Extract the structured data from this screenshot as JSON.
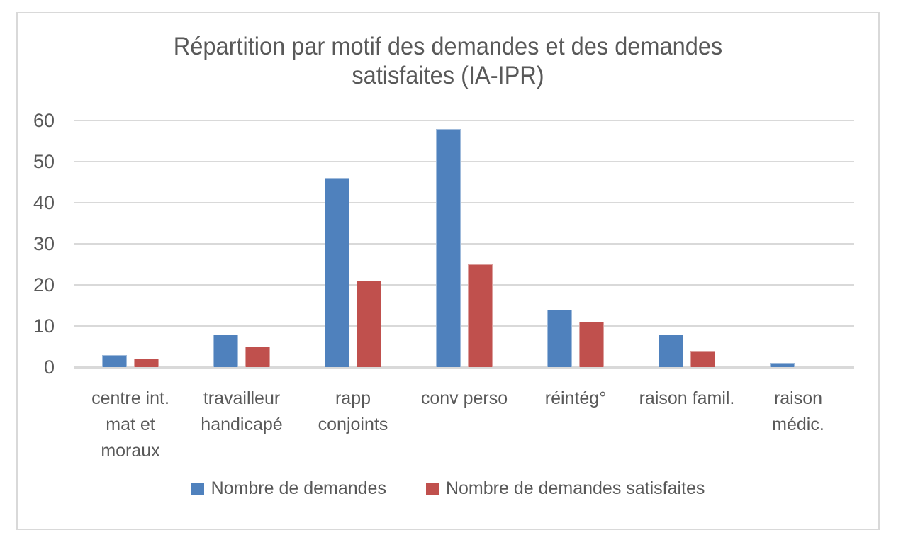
{
  "chart_data": {
    "type": "bar",
    "title": "Répartition par motif des demandes et des demandes satisfaites (IA-IPR)",
    "categories": [
      "centre int.\nmat et\nmoraux",
      "travailleur\nhandicapé",
      "rapp\nconjoints",
      "conv perso",
      "réintég°",
      "raison famil.",
      "raison\nmédic."
    ],
    "series": [
      {
        "name": "Nombre de demandes",
        "color": "#4F81BD",
        "values": [
          3,
          8,
          46,
          58,
          14,
          8,
          1
        ]
      },
      {
        "name": "Nombre de demandes satisfaites",
        "color": "#C0504D",
        "values": [
          2,
          5,
          21,
          25,
          11,
          4,
          0
        ]
      }
    ],
    "ylim": [
      0,
      60
    ],
    "yticks": [
      0,
      10,
      20,
      30,
      40,
      50,
      60
    ],
    "grid": true,
    "legend_position": "bottom",
    "colors": {
      "text": "#595959",
      "gridline": "#D9D9D9",
      "frame_border": "#D9D9D9",
      "background": "#FFFFFF"
    }
  }
}
